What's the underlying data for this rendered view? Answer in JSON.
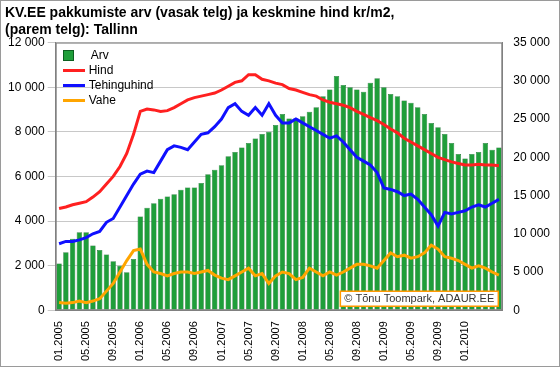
{
  "chart_data": {
    "type": "bar",
    "title": [
      "KV.EE pakkumiste arv (vasak telg) ja keskmine hind kr/m2,",
      "(parem telg): Tallinn"
    ],
    "annotation": "© Tõnu Toompark, ADAUR.EE",
    "categories": [
      "01.2005",
      null,
      null,
      null,
      "05.2005",
      null,
      null,
      null,
      "09.2005",
      null,
      null,
      null,
      "01.2006",
      null,
      null,
      null,
      "05.2006",
      null,
      null,
      null,
      "09.2006",
      null,
      null,
      null,
      "01.2007",
      null,
      null,
      null,
      "05.2007",
      null,
      null,
      null,
      "09.2007",
      null,
      null,
      null,
      "01.2008",
      null,
      null,
      null,
      "05.2008",
      null,
      null,
      null,
      "09.2008",
      null,
      null,
      null,
      "01.2009",
      null,
      null,
      null,
      "05.2009",
      null,
      null,
      null,
      "09.2009",
      null,
      null,
      null,
      "01.2010",
      null,
      null,
      null,
      null,
      null
    ],
    "series": [
      {
        "name": "Arv",
        "type": "bar",
        "color": "#1f9e3a",
        "values": [
          2100,
          2600,
          3200,
          3500,
          3500,
          2900,
          2700,
          2500,
          2200,
          2000,
          1700,
          2300,
          4200,
          4600,
          4800,
          5000,
          5100,
          5200,
          5400,
          5500,
          5500,
          5700,
          6100,
          6300,
          6500,
          6900,
          7100,
          7300,
          7500,
          7700,
          7900,
          8000,
          8300,
          8800,
          8600,
          8600,
          8700,
          8900,
          9100,
          9600,
          9900,
          10500,
          10100,
          10000,
          9900,
          9800,
          10200,
          10400,
          10000,
          9700,
          9600,
          9400,
          9300,
          9100,
          8800,
          8400,
          8200,
          7900,
          7500,
          7000,
          6800,
          7000,
          7100,
          7500,
          7200,
          7300
        ]
      },
      {
        "name": "Hind",
        "type": "line",
        "axis": "y2",
        "color": "#ff2020",
        "values": [
          13300,
          13500,
          13800,
          14000,
          14200,
          14800,
          15500,
          16500,
          17500,
          18800,
          20500,
          23000,
          26000,
          26300,
          26200,
          26000,
          26100,
          26500,
          27000,
          27500,
          27800,
          28000,
          28200,
          28400,
          28800,
          29300,
          29800,
          30000,
          30800,
          30800,
          30200,
          30000,
          29700,
          29500,
          29000,
          28800,
          28500,
          28200,
          28000,
          27500,
          27200,
          27000,
          26800,
          26500,
          26000,
          25600,
          25200,
          24800,
          24300,
          23700,
          23200,
          22500,
          22000,
          21500,
          21000,
          20500,
          20000,
          19700,
          19400,
          19200,
          19000,
          19000,
          19100,
          19000,
          19000,
          18900
        ]
      },
      {
        "name": "Tehinguhind",
        "type": "line",
        "axis": "y2",
        "color": "#1010ff",
        "values": [
          8700,
          9000,
          9000,
          9200,
          9500,
          10000,
          10300,
          11500,
          12000,
          13500,
          15000,
          16500,
          17800,
          18200,
          18000,
          19500,
          21000,
          21500,
          21300,
          21000,
          22000,
          23000,
          23200,
          24000,
          25000,
          26500,
          27000,
          26000,
          25500,
          26500,
          25500,
          27000,
          25500,
          24500,
          24500,
          25000,
          24500,
          24000,
          23500,
          23000,
          22500,
          22800,
          22000,
          21000,
          20000,
          19500,
          19000,
          18000,
          16000,
          15800,
          15500,
          15000,
          15200,
          14500,
          13500,
          12500,
          11000,
          12800,
          12600,
          12800,
          13000,
          13500,
          13800,
          13500,
          14000,
          14500
        ]
      },
      {
        "name": "Vahe",
        "type": "line",
        "axis": "y2",
        "color": "#ffa500",
        "values": [
          1000,
          900,
          1000,
          1200,
          1000,
          1200,
          1500,
          2500,
          3500,
          5000,
          6500,
          7800,
          8000,
          6000,
          5000,
          4800,
          4500,
          4800,
          5000,
          5000,
          4800,
          5000,
          5200,
          4600,
          4200,
          4000,
          4500,
          5000,
          5500,
          4500,
          4800,
          3500,
          4500,
          5000,
          4800,
          4000,
          4300,
          5500,
          5000,
          4500,
          5000,
          4600,
          5000,
          5500,
          6000,
          6000,
          5800,
          5500,
          6500,
          7500,
          7000,
          7200,
          6800,
          7000,
          7500,
          8500,
          8000,
          7000,
          6800,
          6500,
          6000,
          5500,
          5800,
          5500,
          5000,
          4600
        ]
      }
    ],
    "ylim": [
      0,
      12000
    ],
    "yticks": [
      0,
      {
        "value": 2000,
        "label": "2 000"
      },
      {
        "value": 4000,
        "label": "4 000"
      },
      {
        "value": 6000,
        "label": "6 000"
      },
      {
        "value": 8000,
        "label": "8 000"
      },
      {
        "value": 10000,
        "label": "10 000"
      },
      {
        "value": 12000,
        "label": "12 000"
      }
    ],
    "y2lim": [
      0,
      35000
    ],
    "y2ticks": [
      0,
      {
        "value": 5000,
        "label": "5 000"
      },
      {
        "value": 10000,
        "label": "10 000"
      },
      {
        "value": 15000,
        "label": "15 000"
      },
      {
        "value": 20000,
        "label": "20 000"
      },
      {
        "value": 25000,
        "label": "25 000"
      },
      {
        "value": 30000,
        "label": "30 000"
      },
      {
        "value": 35000,
        "label": "35 000"
      }
    ],
    "grid": true,
    "legend": "upper left"
  }
}
